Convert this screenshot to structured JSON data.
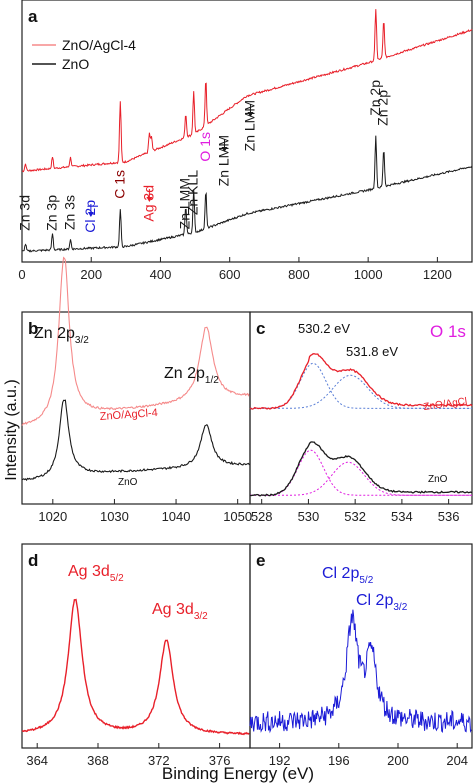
{
  "axis_labels": {
    "y": "Intensity (a.u.)",
    "x": "Binding Energy (eV)"
  },
  "colors": {
    "red": "#e8202a",
    "black": "#1a1a1a",
    "blue": "#1b1bd6",
    "magenta": "#e01ee0",
    "lightred": "#f58a8a"
  },
  "chart_data": [
    {
      "panel": "a",
      "type": "line",
      "xlim": [
        0,
        1300
      ],
      "xticks": [
        "0",
        "200",
        "400",
        "600",
        "800",
        "1000",
        "1200"
      ],
      "legend": [
        "ZnO/AgCl-4",
        "ZnO"
      ],
      "series": [
        {
          "name": "ZnO/AgCl-4",
          "color": "red",
          "baseline": [
            [
              0,
              0.36
            ],
            [
              300,
              0.4
            ],
            [
              500,
              0.52
            ],
            [
              650,
              0.68
            ],
            [
              1000,
              0.82
            ],
            [
              1300,
              0.96
            ]
          ],
          "peaks": [
            [
              10,
              0.03
            ],
            [
              88,
              0.05
            ],
            [
              140,
              0.04
            ],
            [
              284,
              0.26
            ],
            [
              368,
              0.08
            ],
            [
              374,
              0.06
            ],
            [
              473,
              0.1
            ],
            [
              496,
              0.18
            ],
            [
              531,
              0.2
            ],
            [
              1022,
              0.22
            ],
            [
              1045,
              0.16
            ]
          ]
        },
        {
          "name": "ZnO",
          "color": "black",
          "baseline": [
            [
              0,
              0.02
            ],
            [
              300,
              0.04
            ],
            [
              500,
              0.1
            ],
            [
              650,
              0.18
            ],
            [
              1000,
              0.28
            ],
            [
              1300,
              0.38
            ]
          ],
          "peaks": [
            [
              10,
              0.03
            ],
            [
              88,
              0.07
            ],
            [
              140,
              0.04
            ],
            [
              284,
              0.16
            ],
            [
              473,
              0.12
            ],
            [
              496,
              0.18
            ],
            [
              531,
              0.16
            ],
            [
              1022,
              0.22
            ],
            [
              1045,
              0.16
            ]
          ]
        }
      ],
      "annotations": [
        {
          "text": "Zn 3d",
          "x": 10,
          "color": "black"
        },
        {
          "text": "Zn 3p",
          "x": 88,
          "color": "black"
        },
        {
          "text": "Zn 3s",
          "x": 140,
          "color": "black"
        },
        {
          "text": "Cl 2p",
          "x": 199,
          "color": "blue",
          "arrow": true
        },
        {
          "text": "C 1s",
          "x": 284,
          "color": "darkred"
        },
        {
          "text": "Ag 3d",
          "x": 368,
          "color": "red",
          "arrow": true
        },
        {
          "text": "Zn LMM",
          "x": 473,
          "color": "black"
        },
        {
          "text": "Zn KLL",
          "x": 496,
          "color": "black"
        },
        {
          "text": "O 1s",
          "x": 531,
          "color": "magenta"
        },
        {
          "text": "Zn LMM",
          "x": 585,
          "color": "black",
          "arrow": true
        },
        {
          "text": "Zn LMM",
          "x": 660,
          "color": "black",
          "arrow": true
        },
        {
          "text": "Zn 2p",
          "x": 1022,
          "color": "black"
        },
        {
          "text": "Zn 2p",
          "x": 1045,
          "color": "black"
        }
      ]
    },
    {
      "panel": "b",
      "type": "line",
      "xlim": [
        1015,
        1052
      ],
      "xticks": [
        "1020",
        "1030",
        "1040",
        "1050"
      ],
      "peak_labels": [
        {
          "main": "Zn 2p",
          "sub": "3/2",
          "x": 1021.8
        },
        {
          "main": "Zn 2p",
          "sub": "1/2",
          "x": 1044.9
        }
      ],
      "series": [
        {
          "name": "ZnO/AgCl-4",
          "color": "red",
          "peaks": [
            [
              1021.8,
              1.0,
              1.0
            ],
            [
              1044.9,
              0.45,
              1.3
            ]
          ],
          "base": 0.42,
          "slope": 0.004
        },
        {
          "name": "ZnO",
          "color": "black",
          "peaks": [
            [
              1021.8,
              0.48,
              0.9
            ],
            [
              1044.9,
              0.26,
              1.1
            ]
          ],
          "base": 0.1,
          "slope": 0.002
        }
      ]
    },
    {
      "panel": "c",
      "type": "line",
      "xlim": [
        527.5,
        537
      ],
      "xticks": [
        "528",
        "530",
        "532",
        "534",
        "536"
      ],
      "title": "O 1s",
      "annotations": [
        {
          "text": "530.2 eV",
          "x": 530.2
        },
        {
          "text": "531.8 eV",
          "x": 531.8
        }
      ],
      "series": [
        {
          "name": "ZnO/AgCl",
          "color": "red",
          "components": [
            [
              530.2,
              0.3,
              0.55
            ],
            [
              531.8,
              0.22,
              0.75
            ]
          ],
          "base": 0.58
        },
        {
          "name": "ZnO",
          "color": "black",
          "components": [
            [
              530.1,
              0.3,
              0.55
            ],
            [
              531.7,
              0.22,
              0.7
            ]
          ],
          "base": 0.03
        }
      ]
    },
    {
      "panel": "d",
      "type": "line",
      "xlim": [
        363,
        378
      ],
      "xticks": [
        "364",
        "368",
        "372",
        "376"
      ],
      "peak_labels": [
        {
          "main": "Ag 3d",
          "sub": "5/2",
          "x": 366.5
        },
        {
          "main": "Ag 3d",
          "sub": "3/2",
          "x": 372.5
        }
      ],
      "series": [
        {
          "name": "Ag 3d",
          "color": "red",
          "peaks": [
            [
              366.5,
              0.75,
              0.55
            ],
            [
              372.5,
              0.52,
              0.55
            ]
          ],
          "base": 0.05
        }
      ]
    },
    {
      "panel": "e",
      "type": "line",
      "xlim": [
        190,
        205
      ],
      "xticks": [
        "192",
        "196",
        "200",
        "204"
      ],
      "peak_labels": [
        {
          "main": "Cl 2p",
          "sub": "5/2",
          "x": 196.9
        },
        {
          "main": "Cl 2p",
          "sub": "3/2",
          "x": 198.4
        }
      ],
      "series": [
        {
          "name": "Cl 2p",
          "color": "blue",
          "peaks": [
            [
              196.9,
              0.55,
              0.45
            ],
            [
              198.2,
              0.35,
              0.45
            ]
          ],
          "base": 0.12,
          "noise": 0.06
        }
      ]
    }
  ]
}
